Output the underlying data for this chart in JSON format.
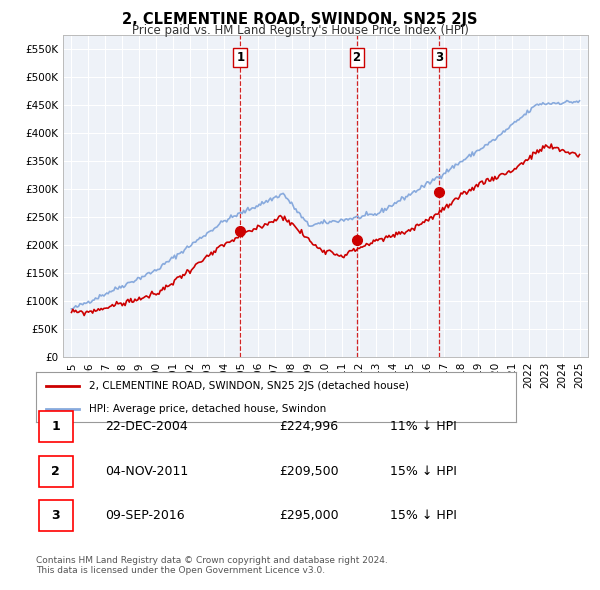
{
  "title": "2, CLEMENTINE ROAD, SWINDON, SN25 2JS",
  "subtitle": "Price paid vs. HM Land Registry's House Price Index (HPI)",
  "hpi_label": "HPI: Average price, detached house, Swindon",
  "property_label": "2, CLEMENTINE ROAD, SWINDON, SN25 2JS (detached house)",
  "hpi_color": "#88aadd",
  "property_color": "#cc0000",
  "vline_color": "#cc0000",
  "background_color": "#ffffff",
  "plot_bg_color": "#eef2f8",
  "grid_color": "#ffffff",
  "ylim": [
    0,
    575000
  ],
  "yticks": [
    0,
    50000,
    100000,
    150000,
    200000,
    250000,
    300000,
    350000,
    400000,
    450000,
    500000,
    550000
  ],
  "transactions": [
    {
      "label": "1",
      "date": "22-DEC-2004",
      "price": 224996,
      "pct": "11% ↓ HPI",
      "x_year": 2004.97
    },
    {
      "label": "2",
      "date": "04-NOV-2011",
      "price": 209500,
      "pct": "15% ↓ HPI",
      "x_year": 2011.84
    },
    {
      "label": "3",
      "date": "09-SEP-2016",
      "price": 295000,
      "pct": "15% ↓ HPI",
      "x_year": 2016.69
    }
  ],
  "footer": "Contains HM Land Registry data © Crown copyright and database right 2024.\nThis data is licensed under the Open Government Licence v3.0.",
  "xlim_start": 1994.5,
  "xlim_end": 2025.5
}
